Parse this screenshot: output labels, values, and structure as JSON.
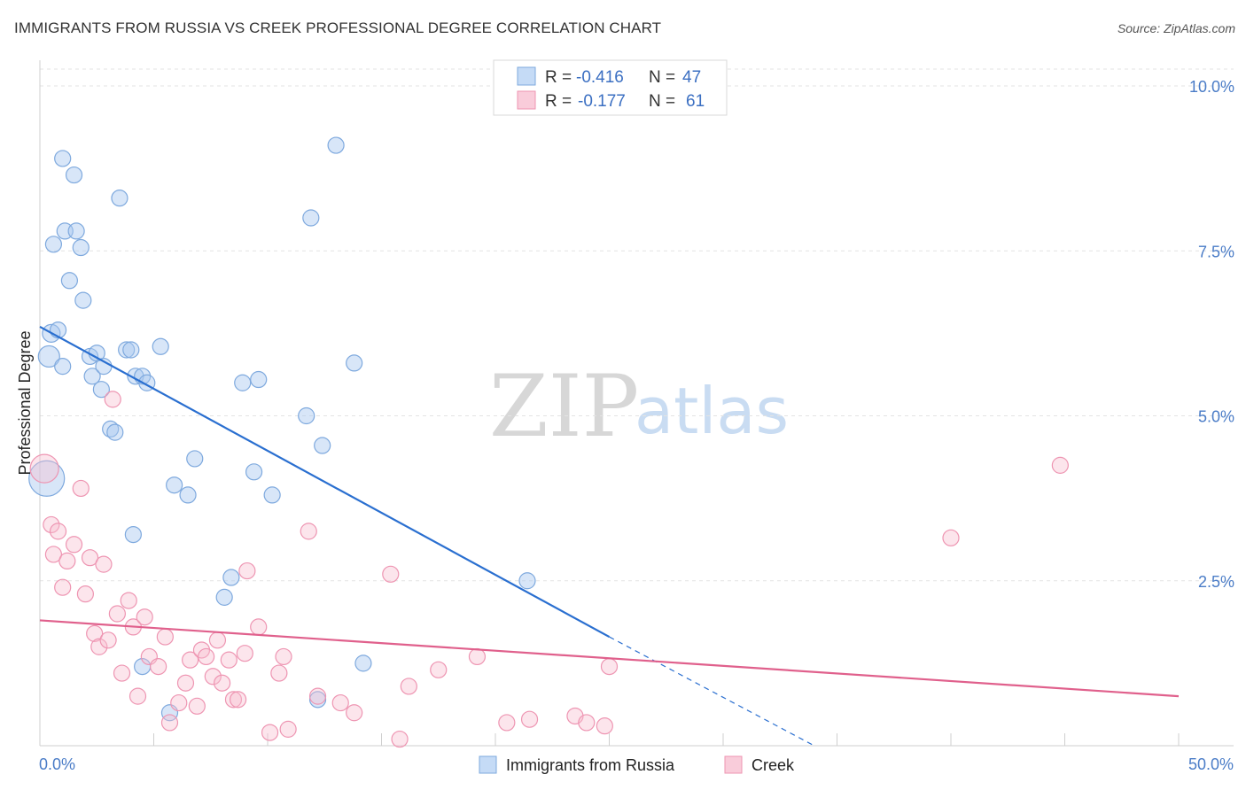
{
  "chart_data": {
    "type": "scatter",
    "title": "IMMIGRANTS FROM RUSSIA VS CREEK PROFESSIONAL DEGREE CORRELATION CHART",
    "source": "Source: ZipAtlas.com",
    "xlabel": "",
    "ylabel": "Professional Degree",
    "xlim": [
      0,
      50
    ],
    "ylim": [
      0,
      10.5
    ],
    "x_tick_labels": [
      "0.0%",
      "50.0%"
    ],
    "y_ticks": [
      2.5,
      5.0,
      7.5,
      10.0
    ],
    "y_tick_labels": [
      "2.5%",
      "5.0%",
      "7.5%",
      "10.0%"
    ],
    "watermark": {
      "zip": "ZIP",
      "atlas": "atlas"
    },
    "legend": {
      "r_label": "R =",
      "n_label": "N =",
      "entries": [
        {
          "r": "-0.416",
          "n": "47"
        },
        {
          "r": "-0.177",
          "n": "61"
        }
      ]
    },
    "series": [
      {
        "name": "Immigrants from Russia",
        "color": "#a9c8f0",
        "stroke": "#7ea9de",
        "trend_color": "#2a6fd0",
        "trend": {
          "x0": 0,
          "y0": 6.35,
          "x1": 25,
          "y1": 1.65,
          "dash_to_x": 34,
          "dash_to_y": -0.05
        },
        "points": [
          [
            0.3,
            4.05,
            20
          ],
          [
            0.4,
            5.9,
            12
          ],
          [
            0.5,
            6.25,
            10
          ],
          [
            0.6,
            7.6,
            9
          ],
          [
            0.8,
            6.3,
            9
          ],
          [
            1.0,
            8.9,
            9
          ],
          [
            1.0,
            5.75,
            9
          ],
          [
            1.1,
            7.8,
            9
          ],
          [
            1.3,
            7.05,
            9
          ],
          [
            1.5,
            8.65,
            9
          ],
          [
            1.6,
            7.8,
            9
          ],
          [
            1.8,
            7.55,
            9
          ],
          [
            1.9,
            6.75,
            9
          ],
          [
            2.2,
            5.9,
            9
          ],
          [
            2.3,
            5.6,
            9
          ],
          [
            2.5,
            5.95,
            9
          ],
          [
            2.7,
            5.4,
            9
          ],
          [
            2.8,
            5.75,
            9
          ],
          [
            3.1,
            4.8,
            9
          ],
          [
            3.3,
            4.75,
            9
          ],
          [
            3.5,
            8.3,
            9
          ],
          [
            3.8,
            6.0,
            9
          ],
          [
            4.0,
            6.0,
            9
          ],
          [
            4.2,
            5.6,
            9
          ],
          [
            4.5,
            5.6,
            9
          ],
          [
            4.7,
            5.5,
            9
          ],
          [
            5.3,
            6.05,
            9
          ],
          [
            5.9,
            3.95,
            9
          ],
          [
            6.5,
            3.8,
            9
          ],
          [
            6.8,
            4.35,
            9
          ],
          [
            8.1,
            2.25,
            9
          ],
          [
            8.4,
            2.55,
            9
          ],
          [
            8.9,
            5.5,
            9
          ],
          [
            9.4,
            4.15,
            9
          ],
          [
            9.6,
            5.55,
            9
          ],
          [
            10.2,
            3.8,
            9
          ],
          [
            11.7,
            5.0,
            9
          ],
          [
            11.9,
            8.0,
            9
          ],
          [
            12.4,
            4.55,
            9
          ],
          [
            13.0,
            9.1,
            9
          ],
          [
            13.8,
            5.8,
            9
          ],
          [
            14.2,
            1.25,
            9
          ],
          [
            4.1,
            3.2,
            9
          ],
          [
            4.5,
            1.2,
            9
          ],
          [
            5.7,
            0.5,
            9
          ],
          [
            12.2,
            0.7,
            9
          ],
          [
            21.4,
            2.5,
            9
          ]
        ]
      },
      {
        "name": "Creek",
        "color": "#f7bfd0",
        "stroke": "#ee95b2",
        "trend_color": "#e0608c",
        "trend": {
          "x0": 0,
          "y0": 1.9,
          "x1": 50,
          "y1": 0.75
        },
        "points": [
          [
            0.2,
            4.2,
            16
          ],
          [
            0.5,
            3.35,
            9
          ],
          [
            0.6,
            2.9,
            9
          ],
          [
            0.8,
            3.25,
            9
          ],
          [
            1.0,
            2.4,
            9
          ],
          [
            1.2,
            2.8,
            9
          ],
          [
            1.5,
            3.05,
            9
          ],
          [
            1.8,
            3.9,
            9
          ],
          [
            2.0,
            2.3,
            9
          ],
          [
            2.2,
            2.85,
            9
          ],
          [
            2.4,
            1.7,
            9
          ],
          [
            2.6,
            1.5,
            9
          ],
          [
            2.8,
            2.75,
            9
          ],
          [
            3.0,
            1.6,
            9
          ],
          [
            3.2,
            5.25,
            9
          ],
          [
            3.4,
            2.0,
            9
          ],
          [
            3.6,
            1.1,
            9
          ],
          [
            3.9,
            2.2,
            9
          ],
          [
            4.1,
            1.8,
            9
          ],
          [
            4.3,
            0.75,
            9
          ],
          [
            4.6,
            1.95,
            9
          ],
          [
            4.8,
            1.35,
            9
          ],
          [
            5.2,
            1.2,
            9
          ],
          [
            5.5,
            1.65,
            9
          ],
          [
            5.7,
            0.35,
            9
          ],
          [
            6.1,
            0.65,
            9
          ],
          [
            6.4,
            0.95,
            9
          ],
          [
            6.6,
            1.3,
            9
          ],
          [
            6.9,
            0.6,
            9
          ],
          [
            7.1,
            1.45,
            9
          ],
          [
            7.3,
            1.35,
            9
          ],
          [
            7.6,
            1.05,
            9
          ],
          [
            7.8,
            1.6,
            9
          ],
          [
            8.0,
            0.95,
            9
          ],
          [
            8.3,
            1.3,
            9
          ],
          [
            8.5,
            0.7,
            9
          ],
          [
            8.7,
            0.7,
            9
          ],
          [
            9.0,
            1.4,
            9
          ],
          [
            9.1,
            2.65,
            9
          ],
          [
            9.6,
            1.8,
            9
          ],
          [
            10.1,
            0.2,
            9
          ],
          [
            10.5,
            1.1,
            9
          ],
          [
            10.7,
            1.35,
            9
          ],
          [
            10.9,
            0.25,
            9
          ],
          [
            11.8,
            3.25,
            9
          ],
          [
            12.2,
            0.75,
            9
          ],
          [
            13.2,
            0.65,
            9
          ],
          [
            13.8,
            0.5,
            9
          ],
          [
            15.4,
            2.6,
            9
          ],
          [
            15.8,
            0.1,
            9
          ],
          [
            16.2,
            0.9,
            9
          ],
          [
            17.5,
            1.15,
            9
          ],
          [
            19.2,
            1.35,
            9
          ],
          [
            20.5,
            0.35,
            9
          ],
          [
            21.5,
            0.4,
            9
          ],
          [
            23.5,
            0.45,
            9
          ],
          [
            24.0,
            0.35,
            9
          ],
          [
            24.8,
            0.3,
            9
          ],
          [
            25.0,
            1.2,
            9
          ],
          [
            40.0,
            3.15,
            9
          ],
          [
            44.8,
            4.25,
            9
          ]
        ]
      }
    ]
  }
}
